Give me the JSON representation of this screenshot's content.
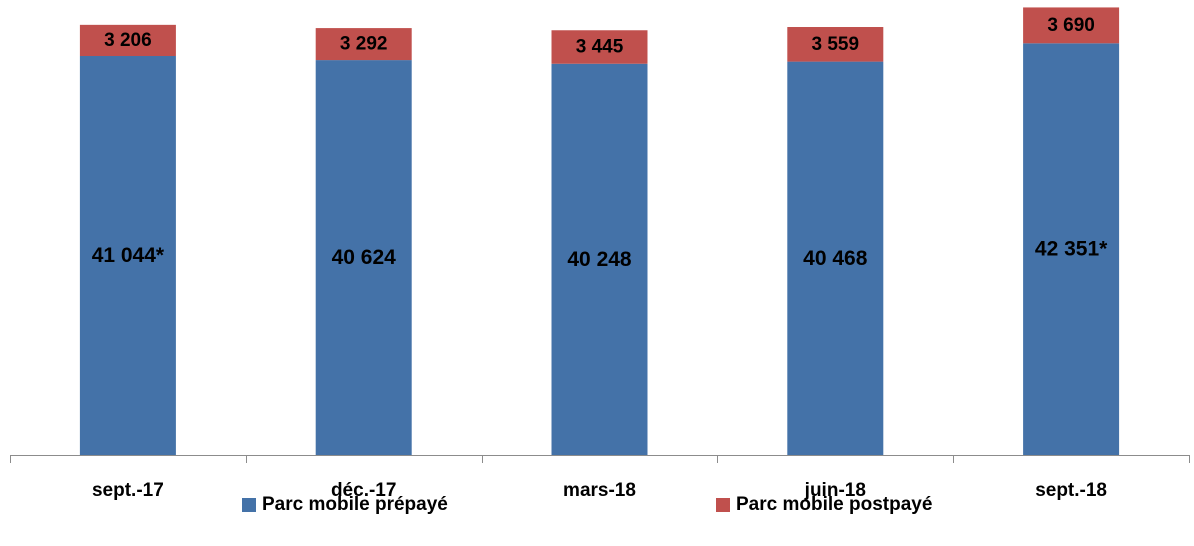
{
  "chart_data": {
    "type": "bar",
    "stacked": true,
    "categories": [
      "sept.-17",
      "déc.-17",
      "mars-18",
      "juin-18",
      "sept.-18"
    ],
    "series": [
      {
        "name": "Parc mobile prépayé",
        "color": "#4472A8",
        "values": [
          41044,
          40624,
          40248,
          40468,
          42351
        ],
        "labels": [
          "41 044*",
          "40 624",
          "40 248",
          "40 468",
          "42 351*"
        ]
      },
      {
        "name": "Parc mobile postpayé",
        "color": "#C0504D",
        "values": [
          3206,
          3292,
          3445,
          3559,
          3690
        ],
        "labels": [
          "3 206",
          "3 292",
          "3 445",
          "3 559",
          "3 690"
        ]
      }
    ],
    "ylim": [
      0,
      46600
    ],
    "grid": false,
    "legend": "bottom"
  }
}
